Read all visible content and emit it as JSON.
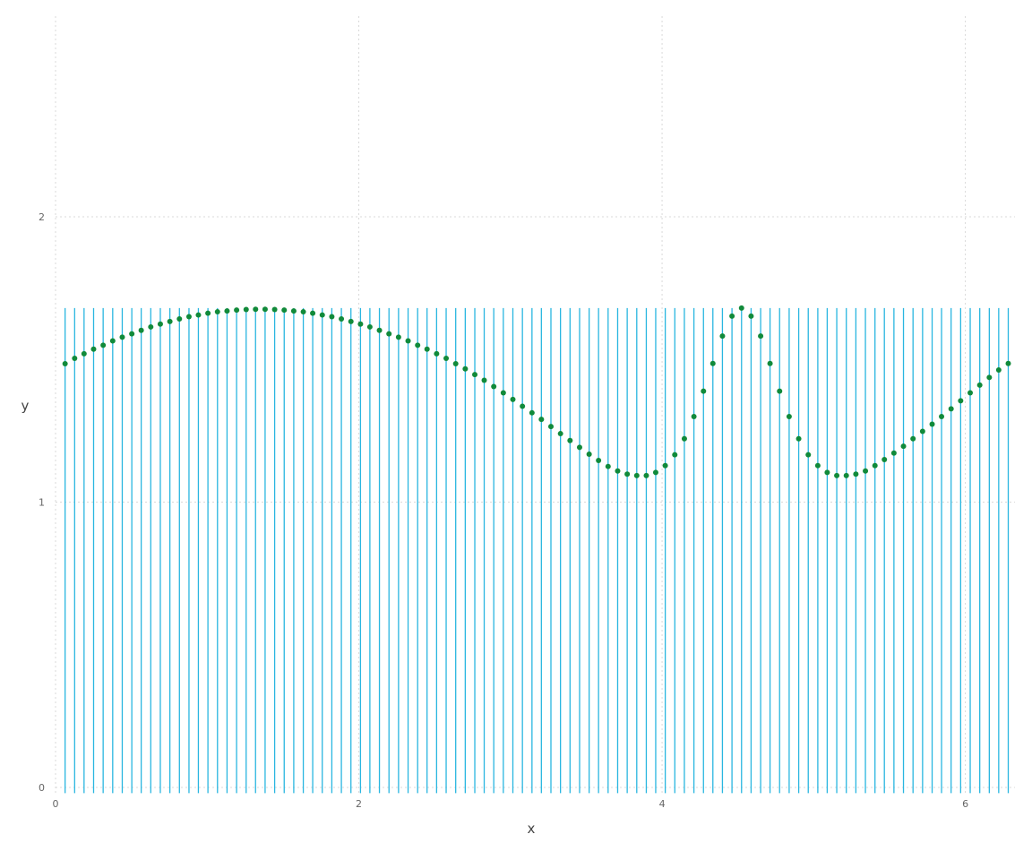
{
  "chart_data": {
    "type": "scatter",
    "title": "",
    "xlabel": "x",
    "ylabel": "y",
    "xlim": [
      0,
      6.283
    ],
    "ylim": [
      0,
      2.7
    ],
    "x_ticks": [
      0,
      2,
      4,
      6
    ],
    "y_ticks": [
      0,
      1,
      2
    ],
    "x_tick_labels": [
      "0",
      "2",
      "4",
      "6"
    ],
    "y_tick_labels": [
      "0",
      "1",
      "2"
    ],
    "grid": true,
    "vertical_lines": {
      "color": "#29b6e0",
      "ymin": -0.02,
      "ymax": 1.68,
      "x": [
        0.063,
        0.126,
        0.188,
        0.251,
        0.314,
        0.377,
        0.44,
        0.503,
        0.565,
        0.628,
        0.691,
        0.754,
        0.817,
        0.88,
        0.942,
        1.005,
        1.068,
        1.131,
        1.194,
        1.257,
        1.319,
        1.382,
        1.445,
        1.508,
        1.571,
        1.634,
        1.696,
        1.759,
        1.822,
        1.885,
        1.948,
        2.011,
        2.073,
        2.136,
        2.199,
        2.262,
        2.325,
        2.388,
        2.45,
        2.513,
        2.576,
        2.639,
        2.702,
        2.765,
        2.827,
        2.89,
        2.953,
        3.016,
        3.079,
        3.142,
        3.204,
        3.267,
        3.33,
        3.393,
        3.456,
        3.519,
        3.581,
        3.644,
        3.707,
        3.77,
        3.833,
        3.896,
        3.958,
        4.021,
        4.084,
        4.147,
        4.21,
        4.273,
        4.335,
        4.398,
        4.461,
        4.524,
        4.587,
        4.65,
        4.712,
        4.775,
        4.838,
        4.901,
        4.964,
        5.027,
        5.089,
        5.152,
        5.215,
        5.278,
        5.341,
        5.404,
        5.466,
        5.529,
        5.592,
        5.655,
        5.718,
        5.781,
        5.843,
        5.906,
        5.969,
        6.032,
        6.095,
        6.158,
        6.22,
        6.283
      ]
    },
    "series": [
      {
        "color": "#118a3a",
        "x": [
          0.063,
          0.126,
          0.188,
          0.251,
          0.314,
          0.377,
          0.44,
          0.503,
          0.565,
          0.628,
          0.691,
          0.754,
          0.817,
          0.88,
          0.942,
          1.005,
          1.068,
          1.131,
          1.194,
          1.257,
          1.319,
          1.382,
          1.445,
          1.508,
          1.571,
          1.634,
          1.696,
          1.759,
          1.822,
          1.885,
          1.948,
          2.011,
          2.073,
          2.136,
          2.199,
          2.262,
          2.325,
          2.388,
          2.45,
          2.513,
          2.576,
          2.639,
          2.702,
          2.765,
          2.827,
          2.89,
          2.953,
          3.016,
          3.079,
          3.142,
          3.204,
          3.267,
          3.33,
          3.393,
          3.456,
          3.519,
          3.581,
          3.644,
          3.707,
          3.77,
          3.833,
          3.896,
          3.958,
          4.021,
          4.084,
          4.147,
          4.21,
          4.273,
          4.335,
          4.398,
          4.461,
          4.524,
          4.587,
          4.65,
          4.712,
          4.775,
          4.838,
          4.901,
          4.964,
          5.027,
          5.089,
          5.152,
          5.215,
          5.278,
          5.341,
          5.404,
          5.466,
          5.529,
          5.592,
          5.655,
          5.718,
          5.781,
          5.843,
          5.906,
          5.969,
          6.032,
          6.095,
          6.158,
          6.22,
          6.283
        ],
        "y": [
          1.485,
          1.504,
          1.52,
          1.536,
          1.55,
          1.565,
          1.578,
          1.59,
          1.602,
          1.614,
          1.624,
          1.633,
          1.642,
          1.65,
          1.656,
          1.662,
          1.667,
          1.67,
          1.673,
          1.675,
          1.676,
          1.676,
          1.675,
          1.673,
          1.67,
          1.667,
          1.662,
          1.656,
          1.65,
          1.642,
          1.633,
          1.624,
          1.614,
          1.602,
          1.59,
          1.578,
          1.565,
          1.55,
          1.536,
          1.52,
          1.504,
          1.485,
          1.467,
          1.447,
          1.427,
          1.405,
          1.383,
          1.36,
          1.336,
          1.313,
          1.29,
          1.265,
          1.24,
          1.216,
          1.192,
          1.168,
          1.146,
          1.125,
          1.109,
          1.098,
          1.093,
          1.093,
          1.104,
          1.128,
          1.166,
          1.222,
          1.3,
          1.389,
          1.486,
          1.582,
          1.652,
          1.68,
          1.652,
          1.582,
          1.486,
          1.389,
          1.3,
          1.222,
          1.166,
          1.128,
          1.104,
          1.093,
          1.093,
          1.098,
          1.109,
          1.128,
          1.149,
          1.172,
          1.196,
          1.222,
          1.248,
          1.273,
          1.3,
          1.327,
          1.355,
          1.383,
          1.41,
          1.437,
          1.463,
          1.486
        ]
      }
    ]
  }
}
